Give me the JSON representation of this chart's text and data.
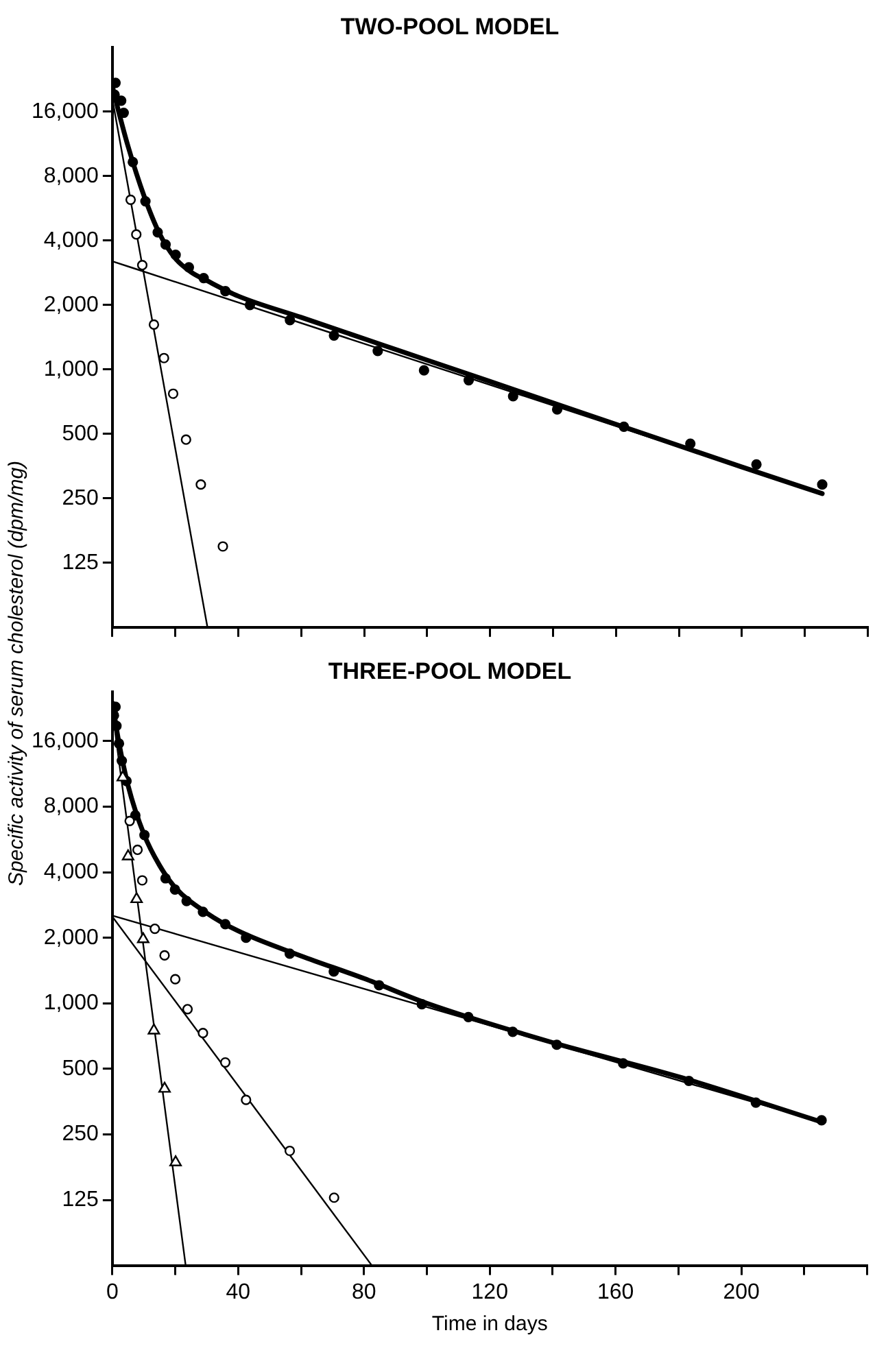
{
  "chart_data": [
    {
      "type": "scatter",
      "title": "TWO-POOL MODEL",
      "ylabel": "Specific activity of serum cholesterol (dpm/mg)",
      "log": "y",
      "tick_labels": "y",
      "xlim": [
        0,
        240
      ],
      "ylim": [
        62.5,
        32000
      ],
      "xticks": [
        0,
        20,
        40,
        60,
        80,
        100,
        120,
        140,
        160,
        180,
        200,
        220,
        240
      ],
      "yticks": [
        125,
        250,
        500,
        {
          "value": 1000,
          "label": "1,000"
        },
        {
          "value": 2000,
          "label": "2,000"
        },
        {
          "value": 4000,
          "label": "4,000"
        },
        {
          "value": 8000,
          "label": "8,000"
        },
        {
          "value": 16000,
          "label": "16,000"
        }
      ],
      "series": [
        {
          "type": "scatter",
          "marker": "circle",
          "color": "#000000",
          "x": [
            0.7,
            1,
            2.8,
            3.6,
            6.5,
            10.5,
            14.4,
            16.9,
            20.1,
            24.3,
            29,
            35.9,
            43.7,
            56.4,
            70.4,
            84.3,
            99,
            113.2,
            127.3,
            141.3,
            162.5,
            183.6,
            204.6,
            225.5
          ],
          "values": [
            19200,
            21800,
            18000,
            15800,
            9300,
            6100,
            4370,
            3830,
            3430,
            3000,
            2670,
            2320,
            2000,
            1700,
            1440,
            1220,
            990,
            890,
            750,
            650,
            540,
            450,
            360,
            290
          ]
        },
        {
          "type": "scatter",
          "marker": "circle",
          "color": "#000000",
          "x": [
            5.8,
            7.6,
            9.5,
            13.2,
            16.4,
            19.3,
            23.4,
            28.1,
            35.1
          ],
          "values": [
            6200,
            4270,
            3070,
            1620,
            1130,
            770,
            470,
            290,
            149
          ]
        },
        {
          "type": "line",
          "marker": "none",
          "line_style": "solid",
          "color": "#000000",
          "x": [
            0,
            2,
            5,
            10,
            15,
            20,
            25,
            30,
            40,
            60,
            100,
            150,
            200,
            225.5
          ],
          "values": [
            21000,
            16000,
            11000,
            6500,
            4300,
            3300,
            2850,
            2600,
            2200,
            1750,
            1105,
            622,
            350,
            263
          ]
        },
        {
          "type": "line",
          "marker": "none",
          "line_style": "solid",
          "color": "#000000",
          "x": [
            0,
            225.5
          ],
          "values": [
            3200,
            263
          ]
        },
        {
          "type": "line",
          "marker": "none",
          "line_style": "solid",
          "color": "#000000",
          "x": [
            0,
            30.2
          ],
          "values": [
            18300,
            62.5
          ]
        }
      ]
    },
    {
      "type": "scatter",
      "title": "THREE-POOL MODEL",
      "xlabel": "Time in days",
      "log": "y",
      "xlim": [
        0,
        240
      ],
      "ylim": [
        62.5,
        27000
      ],
      "xticks": [
        {
          "value": 0,
          "label": "0"
        },
        {
          "value": 20,
          "label": null
        },
        {
          "value": 40,
          "label": "40"
        },
        {
          "value": 60,
          "label": null
        },
        {
          "value": 80,
          "label": "80"
        },
        {
          "value": 100,
          "label": null
        },
        {
          "value": 120,
          "label": "120"
        },
        {
          "value": 140,
          "label": null
        },
        {
          "value": 160,
          "label": "160"
        },
        {
          "value": 180,
          "label": null
        },
        {
          "value": 200,
          "label": "200"
        },
        {
          "value": 220,
          "label": null
        },
        {
          "value": 240,
          "label": null
        }
      ],
      "yticks": [
        125,
        250,
        500,
        {
          "value": 1000,
          "label": "1,000"
        },
        {
          "value": 2000,
          "label": "2,000"
        },
        {
          "value": 4000,
          "label": "4,000"
        },
        {
          "value": 8000,
          "label": "8,000"
        },
        {
          "value": 16000,
          "label": "16,000"
        }
      ],
      "series": [
        {
          "type": "scatter",
          "marker": "circle",
          "color": "#000000",
          "x": [
            0.5,
            1,
            1.3,
            2.1,
            3,
            4.5,
            7.3,
            10.2,
            16.9,
            19.9,
            23.6,
            28.8,
            35.9,
            42.5,
            56.4,
            70.4,
            84.8,
            98.4,
            113.2,
            127.3,
            141.3,
            162.4,
            183.3,
            204.6,
            225.5
          ],
          "values": [
            21000,
            23000,
            18800,
            15600,
            13000,
            10500,
            7300,
            5930,
            3750,
            3330,
            2950,
            2630,
            2310,
            2000,
            1690,
            1400,
            1210,
            990,
            865,
            740,
            645,
            530,
            440,
            350,
            290
          ]
        },
        {
          "type": "scatter",
          "marker": "circle",
          "color": "#000000",
          "x": [
            5.5,
            8,
            9.5,
            13.5,
            16.6,
            20,
            23.9,
            28.8,
            35.9,
            42.5,
            56.4,
            70.5
          ],
          "values": [
            6880,
            5070,
            3670,
            2200,
            1660,
            1290,
            940,
            730,
            535,
            360,
            210,
            128
          ]
        },
        {
          "type": "scatter",
          "marker": "triangle",
          "color": "#000000",
          "x": [
            3.3,
            5,
            7.7,
            9.8,
            13.2,
            16.6,
            20.1
          ],
          "values": [
            10900,
            4730,
            3010,
            1970,
            750,
            405,
            186
          ]
        },
        {
          "type": "line",
          "marker": "none",
          "line_style": "solid",
          "color": "#000000",
          "x": [
            0,
            2,
            5,
            10,
            15,
            20,
            30,
            40,
            60,
            80,
            100,
            140,
            180,
            225.5
          ],
          "values": [
            24000,
            16000,
            10000,
            6000,
            4300,
            3400,
            2600,
            2150,
            1650,
            1300,
            1000,
            660,
            460,
            285
          ]
        },
        {
          "type": "line",
          "marker": "none",
          "line_style": "solid",
          "color": "#000000",
          "x": [
            0,
            225.5
          ],
          "values": [
            2530,
            285
          ]
        },
        {
          "type": "line",
          "marker": "none",
          "line_style": "solid",
          "color": "#000000",
          "x": [
            0,
            82.5
          ],
          "values": [
            2500,
            62.5
          ]
        },
        {
          "type": "line",
          "marker": "none",
          "line_style": "solid",
          "color": "#000000",
          "x": [
            0,
            23.3
          ],
          "values": [
            22000,
            62.5
          ]
        }
      ]
    }
  ]
}
